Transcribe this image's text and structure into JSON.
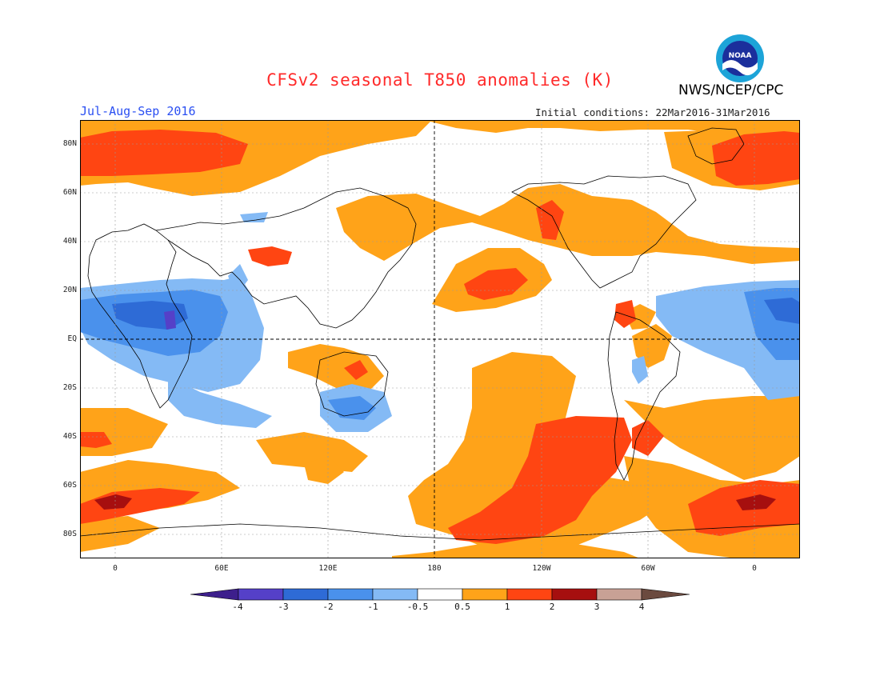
{
  "header": {
    "title": "CFSv2 seasonal T850 anomalies (K)",
    "agency": "NWS/NCEP/CPC",
    "logo_text": "NOAA",
    "season": "Jul-Aug-Sep 2016",
    "initial_conditions": "Initial conditions: 22Mar2016-31Mar2016"
  },
  "axes": {
    "lat_labels": [
      "80N",
      "60N",
      "40N",
      "20N",
      "EQ",
      "20S",
      "40S",
      "60S",
      "80S"
    ],
    "lon_labels": [
      "0",
      "60E",
      "120E",
      "180",
      "120W",
      "60W",
      "0"
    ]
  },
  "colorbar": {
    "labels": [
      "-4",
      "-3",
      "-2",
      "-1",
      "-0.5",
      "0.5",
      "1",
      "2",
      "3",
      "4"
    ],
    "colors": {
      "below_-4": "#3d1f8c",
      "-4_to_-3": "#5540c8",
      "-3_to_-2": "#2e6bd6",
      "-2_to_-1": "#4a91ec",
      "-1_to_-0.5": "#84baf5",
      "-0.5_to_0.5": "#ffffff",
      "0.5_to_1": "#ffa319",
      "1_to_2": "#ff4512",
      "2_to_3": "#a60f0f",
      "3_to_4": "#c8a195",
      "above_4": "#6b4a3f"
    }
  },
  "map_info": {
    "projection": "cylindrical equidistant",
    "dashed_reference_lines": [
      "EQ",
      "180"
    ],
    "grid": "dotted"
  }
}
